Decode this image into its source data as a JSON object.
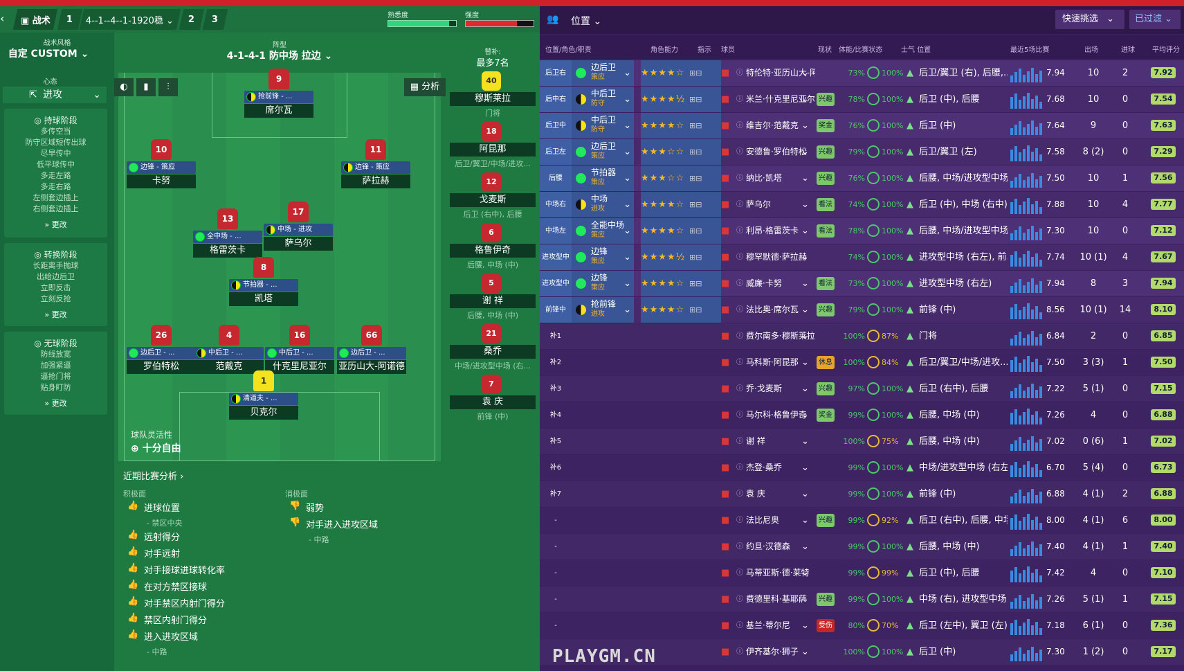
{
  "header": {
    "tactics_label": "战术",
    "tab1": "1",
    "formation_tab": "4--1--4--1-1920稳",
    "tab2": "2",
    "tab3": "3",
    "familiarity_label": "熟悉度",
    "intensity_label": "强度"
  },
  "sidebar": {
    "style_label": "战术风格",
    "style_value": "自定 CUSTOM",
    "mentality_label": "心态",
    "mentality_value": "进攻",
    "in_possession": {
      "title": "持球阶段",
      "items": [
        "多传空当",
        "防守区域短传出球",
        "尽早传中",
        "低平球传中",
        "多走左路",
        "多走右路",
        "左侧套边插上",
        "右侧套边插上"
      ],
      "more": "更改"
    },
    "transition": {
      "title": "转换阶段",
      "items": [
        "长距离手抛球",
        "出给边后卫",
        "立即反击",
        "立刻反抢"
      ],
      "more": "更改"
    },
    "out_possession": {
      "title": "无球阶段",
      "items": [
        "防线放宽",
        "加强紧逼",
        "逼抢门将",
        "贴身盯防"
      ],
      "more": "更改"
    }
  },
  "pitch": {
    "formation_label": "阵型",
    "formation_value": "4-1-4-1 防中场 拉边",
    "analysis_btn": "分析",
    "flex_label": "球队灵活性",
    "flex_value": "十分自由",
    "players": [
      {
        "num": "9",
        "role": "抢前锋 - ...",
        "name": "席尔瓦",
        "dot": "half"
      },
      {
        "num": "10",
        "role": "边锋 - 策应",
        "name": "卡努",
        "dot": "green"
      },
      {
        "num": "11",
        "role": "边锋 - 策应",
        "name": "萨拉赫",
        "dot": "half"
      },
      {
        "num": "13",
        "role": "全中场 - ...",
        "name": "格雷茨卡",
        "dot": "green"
      },
      {
        "num": "17",
        "role": "中场 - 进攻",
        "name": "萨乌尔",
        "dot": "half"
      },
      {
        "num": "8",
        "role": "节拍器 - ...",
        "name": "凯塔",
        "dot": "half"
      },
      {
        "num": "26",
        "role": "边后卫 - ...",
        "name": "罗伯特松",
        "dot": "green"
      },
      {
        "num": "4",
        "role": "中后卫 - ...",
        "name": "范戴克",
        "dot": "half"
      },
      {
        "num": "16",
        "role": "中后卫 - ...",
        "name": "什克里尼亚尔",
        "dot": "green"
      },
      {
        "num": "66",
        "role": "边后卫 - ...",
        "name": "亚历山大-阿诺德",
        "dot": "green"
      },
      {
        "num": "1",
        "role": "清道夫 - ...",
        "name": "贝克尔",
        "dot": "half"
      }
    ]
  },
  "subs": {
    "label": "替补:",
    "max": "最多7名",
    "list": [
      {
        "num": "40",
        "name": "穆斯莱拉",
        "pos": "门将",
        "gk": true
      },
      {
        "num": "18",
        "name": "阿昆那",
        "pos": "后卫/翼卫/中场/进攻..."
      },
      {
        "num": "12",
        "name": "戈麦斯",
        "pos": "后卫 (右中), 后腰"
      },
      {
        "num": "6",
        "name": "格鲁伊奇",
        "pos": "后腰, 中场 (中)"
      },
      {
        "num": "5",
        "name": "谢 祥",
        "pos": "后腰, 中场 (中)"
      },
      {
        "num": "21",
        "name": "桑乔",
        "pos": "中场/进攻型中场 (右..."
      },
      {
        "num": "7",
        "name": "袁 庆",
        "pos": "前锋 (中)"
      }
    ]
  },
  "analysis": {
    "title": "近期比赛分析 ›",
    "pos_label": "积极面",
    "neg_label": "消极面",
    "positives": [
      "进球位置",
      "- 禁区中央",
      "远射得分",
      "对手远射",
      "对手接球进球转化率",
      "在对方禁区接球",
      "对手禁区内射门得分",
      "禁区内射门得分",
      "进入进攻区域",
      "- 中路"
    ],
    "negatives": [
      "弱势",
      "对手进入进攻区域",
      "- 中路"
    ]
  },
  "right": {
    "position_label": "位置",
    "quick_pick": "快速挑选",
    "filter": "已过滤",
    "cols": [
      "位置/角色/职责",
      "角色能力",
      "指示",
      "球员",
      "现状",
      "体能/比赛状态",
      "士气 位置",
      "最近5场比赛",
      "出场",
      "进球",
      "平均评分"
    ],
    "rows": [
      {
        "slot": "后卫右",
        "role": "边后卫",
        "duty": "策应",
        "stars": "★★★★☆",
        "name": "特伦特·亚历山大-阿...",
        "status": "",
        "fit": "73%",
        "cond": "100%",
        "pos": "后卫/翼卫 (右), 后腰,...",
        "avg": "7.94",
        "apps": "10",
        "goals": "2",
        "rating": "7.92"
      },
      {
        "slot": "后中右",
        "role": "中后卫",
        "duty": "防守",
        "stars": "★★★★½",
        "name": "米兰·什克里尼亚尔",
        "status": "兴趣",
        "fit": "78%",
        "cond": "100%",
        "pos": "后卫 (中), 后腰",
        "avg": "7.68",
        "apps": "10",
        "goals": "0",
        "rating": "7.54"
      },
      {
        "slot": "后卫中",
        "role": "中后卫",
        "duty": "防守",
        "stars": "★★★★☆",
        "name": "维吉尔·范戴克",
        "status": "奖金",
        "fit": "76%",
        "cond": "100%",
        "pos": "后卫 (中)",
        "avg": "7.64",
        "apps": "9",
        "goals": "0",
        "rating": "7.63"
      },
      {
        "slot": "后卫左",
        "role": "边后卫",
        "duty": "策应",
        "stars": "★★★☆☆",
        "name": "安德鲁·罗伯特松",
        "status": "兴趣",
        "fit": "79%",
        "cond": "100%",
        "pos": "后卫/翼卫 (左)",
        "avg": "7.58",
        "apps": "8 (2)",
        "goals": "0",
        "rating": "7.29"
      },
      {
        "slot": "后腰",
        "role": "节拍器",
        "duty": "策应",
        "stars": "★★★☆☆",
        "name": "纳比·凯塔",
        "status": "兴趣",
        "fit": "76%",
        "cond": "100%",
        "pos": "后腰, 中场/进攻型中场...",
        "avg": "7.50",
        "apps": "10",
        "goals": "1",
        "rating": "7.56"
      },
      {
        "slot": "中场右",
        "role": "中场",
        "duty": "进攻",
        "stars": "★★★★☆",
        "name": "萨乌尔",
        "status": "看法",
        "fit": "74%",
        "cond": "100%",
        "pos": "后卫 (中), 中场 (右中)",
        "avg": "7.88",
        "apps": "10",
        "goals": "4",
        "rating": "7.77"
      },
      {
        "slot": "中场左",
        "role": "全能中场",
        "duty": "策应",
        "stars": "★★★★☆",
        "name": "利昂·格雷茨卡",
        "status": "看法",
        "fit": "78%",
        "cond": "100%",
        "pos": "后腰, 中场/进攻型中场...",
        "avg": "7.30",
        "apps": "10",
        "goals": "0",
        "rating": "7.12"
      },
      {
        "slot": "进攻型中",
        "role": "边锋",
        "duty": "策应",
        "stars": "★★★★½",
        "name": "穆罕默德·萨拉赫",
        "status": "",
        "fit": "74%",
        "cond": "100%",
        "pos": "进攻型中场 (右左), 前...",
        "avg": "7.74",
        "apps": "10 (1)",
        "goals": "4",
        "rating": "7.67"
      },
      {
        "slot": "进攻型中",
        "role": "边锋",
        "duty": "策应",
        "stars": "★★★★☆",
        "name": "威廉·卡努",
        "status": "看法",
        "fit": "73%",
        "cond": "100%",
        "pos": "进攻型中场 (右左)",
        "avg": "7.94",
        "apps": "8",
        "goals": "3",
        "rating": "7.94"
      },
      {
        "slot": "前锋中",
        "role": "抢前锋",
        "duty": "进攻",
        "stars": "★★★★☆",
        "name": "法比奥·席尔瓦",
        "status": "兴趣",
        "fit": "79%",
        "cond": "100%",
        "pos": "前锋 (中)",
        "avg": "8.56",
        "apps": "10 (1)",
        "goals": "14",
        "rating": "8.10"
      },
      {
        "slot": "补1",
        "role": "",
        "duty": "",
        "stars": "",
        "name": "费尔南多·穆斯莱拉",
        "status": "",
        "fit": "100%",
        "cond": "87%",
        "pos": "门将",
        "avg": "6.84",
        "apps": "2",
        "goals": "0",
        "rating": "6.85"
      },
      {
        "slot": "补2",
        "role": "",
        "duty": "",
        "stars": "",
        "name": "马科斯·阿昆那",
        "status": "休息",
        "fit": "100%",
        "cond": "84%",
        "pos": "后卫/翼卫/中场/进攻...",
        "avg": "7.50",
        "apps": "3 (3)",
        "goals": "1",
        "rating": "7.50"
      },
      {
        "slot": "补3",
        "role": "",
        "duty": "",
        "stars": "",
        "name": "乔·戈麦斯",
        "status": "兴趣",
        "fit": "97%",
        "cond": "100%",
        "pos": "后卫 (右中), 后腰",
        "avg": "7.22",
        "apps": "5 (1)",
        "goals": "0",
        "rating": "7.15"
      },
      {
        "slot": "补4",
        "role": "",
        "duty": "",
        "stars": "",
        "name": "马尔科·格鲁伊奇",
        "status": "奖金",
        "fit": "99%",
        "cond": "100%",
        "pos": "后腰, 中场 (中)",
        "avg": "7.26",
        "apps": "4",
        "goals": "0",
        "rating": "6.88"
      },
      {
        "slot": "补5",
        "role": "",
        "duty": "",
        "stars": "",
        "name": "谢 祥",
        "status": "",
        "fit": "100%",
        "cond": "75%",
        "pos": "后腰, 中场 (中)",
        "avg": "7.02",
        "apps": "0 (6)",
        "goals": "1",
        "rating": "7.02"
      },
      {
        "slot": "补6",
        "role": "",
        "duty": "",
        "stars": "",
        "name": "杰登·桑乔",
        "status": "",
        "fit": "99%",
        "cond": "100%",
        "pos": "中场/进攻型中场 (右左)",
        "avg": "6.70",
        "apps": "5 (4)",
        "goals": "0",
        "rating": "6.73"
      },
      {
        "slot": "补7",
        "role": "",
        "duty": "",
        "stars": "",
        "name": "袁 庆",
        "status": "",
        "fit": "99%",
        "cond": "100%",
        "pos": "前锋 (中)",
        "avg": "6.88",
        "apps": "4 (1)",
        "goals": "2",
        "rating": "6.88"
      },
      {
        "slot": "-",
        "role": "",
        "duty": "",
        "stars": "",
        "name": "法比尼奥",
        "status": "兴趣",
        "fit": "99%",
        "cond": "92%",
        "pos": "后卫 (右中), 后腰, 中场...",
        "avg": "8.00",
        "apps": "4 (1)",
        "goals": "6",
        "rating": "8.00"
      },
      {
        "slot": "-",
        "role": "",
        "duty": "",
        "stars": "",
        "name": "约旦·汉德森",
        "status": "",
        "fit": "99%",
        "cond": "100%",
        "pos": "后腰, 中场 (中)",
        "avg": "7.40",
        "apps": "4 (1)",
        "goals": "1",
        "rating": "7.40"
      },
      {
        "slot": "-",
        "role": "",
        "duty": "",
        "stars": "",
        "name": "马蒂亚斯·德·莱特",
        "status": "",
        "fit": "99%",
        "cond": "99%",
        "pos": "后卫 (中), 后腰",
        "avg": "7.42",
        "apps": "4",
        "goals": "0",
        "rating": "7.10"
      },
      {
        "slot": "-",
        "role": "",
        "duty": "",
        "stars": "",
        "name": "费德里科·基耶萨",
        "status": "兴趣",
        "fit": "99%",
        "cond": "100%",
        "pos": "中场 (右), 进攻型中场 (...",
        "avg": "7.26",
        "apps": "5 (1)",
        "goals": "1",
        "rating": "7.15"
      },
      {
        "slot": "-",
        "role": "",
        "duty": "",
        "stars": "",
        "name": "基兰·蒂尔尼",
        "status": "受伤",
        "fit": "80%",
        "cond": "70%",
        "pos": "后卫 (左中), 翼卫 (左)",
        "avg": "7.18",
        "apps": "6 (1)",
        "goals": "0",
        "rating": "7.36"
      },
      {
        "slot": "-",
        "role": "",
        "duty": "",
        "stars": "",
        "name": "伊齐基尔·狮子",
        "status": "",
        "fit": "100%",
        "cond": "100%",
        "pos": "后卫 (中)",
        "avg": "7.30",
        "apps": "1 (2)",
        "goals": "0",
        "rating": "7.17"
      }
    ]
  },
  "watermark": "PLAYGM.CN"
}
